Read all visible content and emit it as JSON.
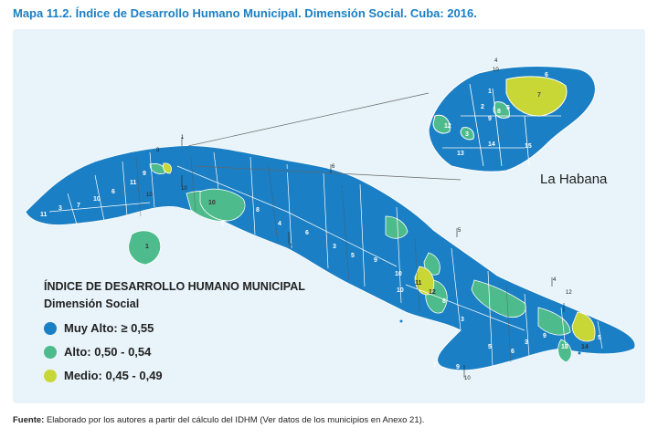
{
  "title": "Mapa 11.2. Índice de Desarrollo Humano Municipal. Dimensión Social. Cuba: 2016.",
  "inset_label": "La Habana",
  "legend": {
    "title": "ÍNDICE DE DESARROLLO HUMANO MUNICIPAL",
    "subtitle": "Dimensión Social",
    "items": [
      {
        "label": "Muy Alto:  ≥ 0,55",
        "color": "#1a7fc4"
      },
      {
        "label": "Alto: 0,50 - 0,54",
        "color": "#4dbb8b"
      },
      {
        "label": "Medio: 0,45 - 0,49",
        "color": "#c8d736"
      }
    ]
  },
  "colors": {
    "muy_alto": "#1a7fc4",
    "alto": "#4dbb8b",
    "medio": "#c8d736",
    "background": "#e8f4fa"
  },
  "source_label": "Fuente:",
  "source_text": " Elaborado por los autores a partir del cálculo del IDHM (Ver datos de los municipios en Anexo 21)."
}
